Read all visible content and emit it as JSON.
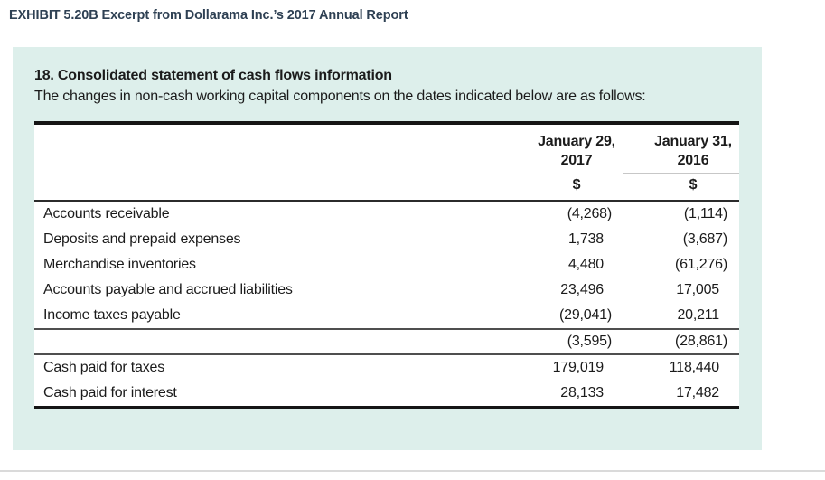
{
  "exhibit_title": "EXHIBIT 5.20B Excerpt from Dollarama Inc.’s 2017 Annual Report",
  "panel": {
    "heading": "18. Consolidated statement of cash flows information",
    "subheading": "The changes in non-cash working capital components on the dates indicated below are as follows:"
  },
  "table": {
    "columns": [
      {
        "line1": "January 29,",
        "line2": "2017",
        "unit": "$"
      },
      {
        "line1": "January 31,",
        "line2": "2016",
        "unit": "$"
      }
    ],
    "rows": [
      {
        "label": "Accounts receivable",
        "y2017": "(4,268)",
        "y2016": "(1,114)"
      },
      {
        "label": "Deposits and prepaid expenses",
        "y2017": "1,738",
        "y2016": "(3,687)"
      },
      {
        "label": "Merchandise inventories",
        "y2017": "4,480",
        "y2016": "(61,276)"
      },
      {
        "label": "Accounts payable and accrued liabilities",
        "y2017": "23,496",
        "y2016": "17,005"
      },
      {
        "label": "Income taxes payable",
        "y2017": "(29,041)",
        "y2016": "20,211"
      }
    ],
    "total_row": {
      "label": "",
      "y2017": "(3,595)",
      "y2016": "(28,861)"
    },
    "supplemental_rows": [
      {
        "label": "Cash paid for taxes",
        "y2017": "179,019",
        "y2016": "118,440"
      },
      {
        "label": "Cash paid for interest",
        "y2017": "28,133",
        "y2016": "17,482"
      }
    ]
  },
  "colors": {
    "page-bg": "#ffffff",
    "panel-bg": "#ddefeb",
    "title-color": "#2e4053",
    "text-color": "#1b1b1b",
    "table-bg": "#ffffff",
    "rule-heavy": "#151515",
    "rule-dark": "#2b2b2b",
    "rule-medium": "#4f4f4f",
    "rule-light": "#c7c7c7",
    "hairline": "#dadada"
  }
}
